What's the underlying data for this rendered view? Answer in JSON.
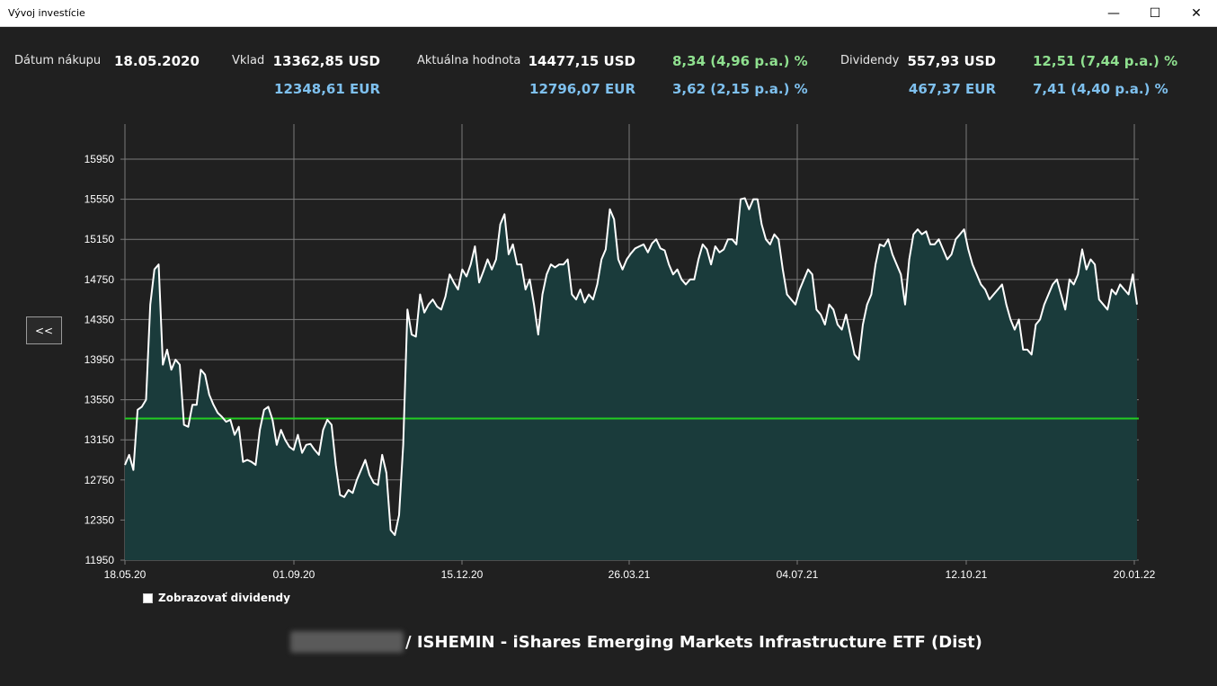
{
  "window": {
    "title": "Vývoj investície",
    "minimize_icon": "—",
    "maximize_icon": "☐",
    "close_icon": "✕"
  },
  "summary": {
    "purchase_label": "Dátum nákupu",
    "purchase_date": "18.05.2020",
    "deposit_label": "Vklad",
    "deposit_usd": "13362,85 USD",
    "deposit_eur": "12348,61 EUR",
    "current_label": "Aktuálna hodnota",
    "current_usd": "14477,15 USD",
    "current_eur": "12796,07 EUR",
    "current_pct_usd": "8,34 (4,96 p.a.) %",
    "current_pct_eur": "3,62 (2,15 p.a.) %",
    "dividend_label": "Dividendy",
    "dividend_usd": "557,93 USD",
    "dividend_eur": "467,37 EUR",
    "dividend_pct_usd": "12,51 (7,44 p.a.) %",
    "dividend_pct_eur": "7,41 (4,40 p.a.) %"
  },
  "back_button": {
    "label": "<<"
  },
  "show_dividends": {
    "label": "Zobrazovať dividendy",
    "checked": false
  },
  "footer": {
    "title": "/ ISHEMIN - iShares Emerging Markets Infrastructure ETF (Dist)"
  },
  "colors": {
    "line": "#ffffff",
    "fill": "#1a3b3b",
    "reference": "#22cc22",
    "grid": "#7a7a7a",
    "background": "#202020"
  },
  "chart_data": {
    "type": "area",
    "xlabel": "",
    "ylabel": "",
    "ylim": [
      11950,
      16300
    ],
    "y_ticks": [
      11950,
      12350,
      12750,
      13150,
      13550,
      13950,
      14350,
      14750,
      15150,
      15550,
      15950
    ],
    "y_tick_labels": [
      "11950",
      "12350",
      "12750",
      "13150",
      "13550",
      "13950",
      "14350",
      "14750",
      "15150",
      "15550",
      "15950"
    ],
    "x_tick_labels": [
      "18.05.20",
      "01.09.20",
      "15.12.20",
      "26.03.21",
      "04.07.21",
      "12.10.21",
      "20.01.22"
    ],
    "grid": true,
    "reference_line": {
      "value": 13362.85
    },
    "series": [
      {
        "values": [
          12900,
          13000,
          12850,
          13450,
          13480,
          13550,
          14500,
          14850,
          14900,
          13900,
          14050,
          13850,
          13950,
          13900,
          13300,
          13280,
          13500,
          13500,
          13850,
          13800,
          13600,
          13500,
          13420,
          13380,
          13330,
          13350,
          13200,
          13280,
          12930,
          12950,
          12930,
          12900,
          13250,
          13450,
          13480,
          13350,
          13100,
          13250,
          13150,
          13080,
          13050,
          13200,
          13020,
          13100,
          13110,
          13050,
          13000,
          13250,
          13350,
          13300,
          12900,
          12600,
          12580,
          12650,
          12620,
          12750,
          12850,
          12950,
          12800,
          12720,
          12700,
          13000,
          12820,
          12250,
          12200,
          12400,
          13100,
          14450,
          14200,
          14180,
          14600,
          14420,
          14500,
          14550,
          14480,
          14450,
          14580,
          14800,
          14720,
          14650,
          14850,
          14780,
          14900,
          15080,
          14720,
          14830,
          14950,
          14850,
          14950,
          15300,
          15400,
          15000,
          15100,
          14900,
          14900,
          14650,
          14750,
          14500,
          14200,
          14600,
          14800,
          14900,
          14870,
          14900,
          14900,
          14950,
          14600,
          14550,
          14650,
          14520,
          14600,
          14550,
          14700,
          14950,
          15050,
          15450,
          15350,
          14950,
          14850,
          14950,
          15010,
          15060,
          15080,
          15100,
          15020,
          15110,
          15150,
          15060,
          15040,
          14900,
          14800,
          14850,
          14750,
          14700,
          14750,
          14750,
          14950,
          15100,
          15050,
          14900,
          15080,
          15020,
          15050,
          15150,
          15150,
          15100,
          15550,
          15560,
          15450,
          15550,
          15550,
          15300,
          15150,
          15100,
          15200,
          15150,
          14850,
          14600,
          14550,
          14500,
          14650,
          14750,
          14850,
          14800,
          14450,
          14400,
          14300,
          14500,
          14450,
          14300,
          14250,
          14400,
          14200,
          14000,
          13950,
          14300,
          14500,
          14600,
          14900,
          15100,
          15080,
          15150,
          15000,
          14900,
          14800,
          14500,
          14950,
          15200,
          15250,
          15200,
          15230,
          15100,
          15100,
          15150,
          15050,
          14950,
          15000,
          15150,
          15200,
          15250,
          15050,
          14900,
          14800,
          14700,
          14650,
          14550,
          14600,
          14650,
          14700,
          14500,
          14350,
          14250,
          14350,
          14050,
          14050,
          14000,
          14300,
          14350,
          14500,
          14600,
          14700,
          14750,
          14600,
          14450,
          14750,
          14700,
          14800,
          15050,
          14850,
          14950,
          14900,
          14550,
          14500,
          14450,
          14650,
          14600,
          14700,
          14650,
          14600,
          14800,
          14500
        ]
      }
    ]
  }
}
